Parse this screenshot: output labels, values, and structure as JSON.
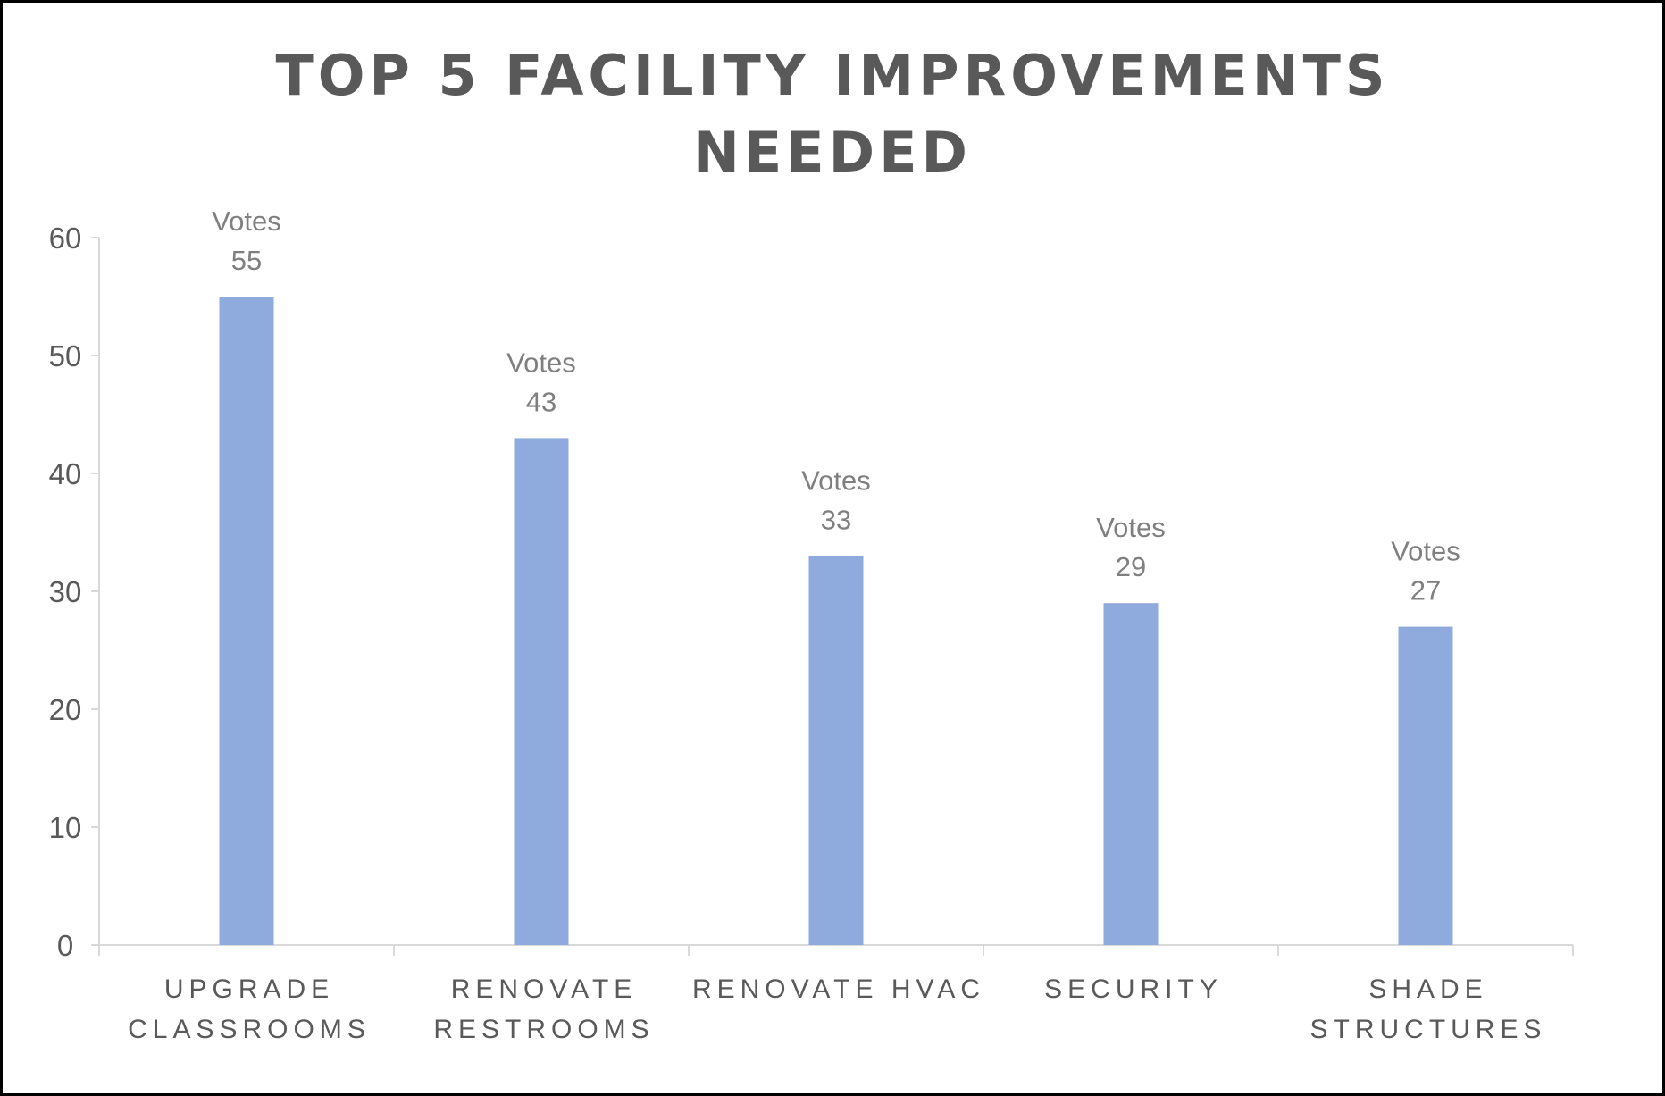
{
  "chart_data": {
    "type": "bar",
    "title_lines": [
      "TOP 5 FACILITY IMPROVEMENTS",
      "NEEDED"
    ],
    "categories": [
      [
        "UPGRADE",
        "CLASSROOMS"
      ],
      [
        "RENOVATE",
        "RESTROOMS"
      ],
      [
        "RENOVATE HVAC"
      ],
      [
        "SECURITY"
      ],
      [
        "SHADE",
        "STRUCTURES"
      ]
    ],
    "series": [
      {
        "name": "Votes",
        "values": [
          55,
          43,
          33,
          29,
          27
        ]
      }
    ],
    "data_label_prefix": "Votes",
    "ylim": [
      0,
      60
    ],
    "yticks": [
      0,
      10,
      20,
      30,
      40,
      50,
      60
    ],
    "xlabel": "",
    "ylabel": "",
    "grid": false,
    "legend": "none",
    "bar_color": "#8faadc",
    "axis_color": "#d9d9d9",
    "text_color": "#595959",
    "label_color": "#7f7f7f"
  }
}
